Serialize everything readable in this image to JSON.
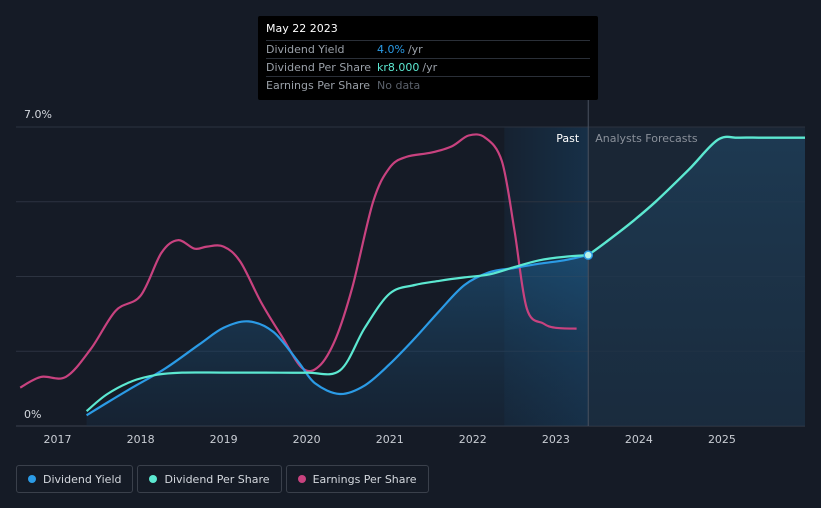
{
  "tooltip": {
    "date": "May 22 2023",
    "rows": [
      {
        "label": "Dividend Yield",
        "value": "4.0%",
        "unit": "/yr"
      },
      {
        "label": "Dividend Per Share",
        "value": "kr8.000",
        "unit": "/yr"
      },
      {
        "label": "Earnings Per Share",
        "value": "No data"
      }
    ]
  },
  "legend": [
    {
      "label": "Dividend Yield",
      "color": "#2b9be6"
    },
    {
      "label": "Dividend Per Share",
      "color": "#5ce8d1"
    },
    {
      "label": "Earnings Per Share",
      "color": "#c8427f"
    }
  ],
  "chart_data": {
    "type": "line",
    "y_tick_labels": [
      "7.0%",
      "0%"
    ],
    "ylim": [
      0,
      7.0
    ],
    "xlim": [
      2016.5,
      2026.0
    ],
    "x_tick_labels": [
      "2017",
      "2018",
      "2019",
      "2020",
      "2021",
      "2022",
      "2023",
      "2024",
      "2025"
    ],
    "x_ticks": [
      2017,
      2018,
      2019,
      2020,
      2021,
      2022,
      2023,
      2024,
      2025
    ],
    "past_label": "Past",
    "forecast_label": "Analysts Forecasts",
    "forecast_start": 2023.39,
    "shade_start": 2022.38,
    "hover_x": 2023.39,
    "series": [
      {
        "name": "Dividend Yield",
        "color": "#2b9be6",
        "x": [
          2017.35,
          2017.6,
          2017.9,
          2018.3,
          2018.7,
          2019.0,
          2019.3,
          2019.6,
          2019.9,
          2020.1,
          2020.4,
          2020.7,
          2021.0,
          2021.3,
          2021.6,
          2021.9,
          2022.2,
          2022.5,
          2022.8,
          2023.1,
          2023.39
        ],
        "y": [
          0.25,
          0.55,
          0.9,
          1.35,
          1.9,
          2.3,
          2.45,
          2.2,
          1.5,
          1.0,
          0.75,
          0.95,
          1.45,
          2.05,
          2.7,
          3.3,
          3.6,
          3.7,
          3.8,
          3.88,
          4.0
        ]
      },
      {
        "name": "Dividend Per Share",
        "color": "#5ce8d1",
        "x": [
          2017.35,
          2017.6,
          2017.9,
          2018.2,
          2018.5,
          2019.0,
          2019.5,
          2020.0,
          2020.4,
          2020.7,
          2021.0,
          2021.3,
          2021.6,
          2021.9,
          2022.2,
          2022.5,
          2022.8,
          2023.1,
          2023.39
        ],
        "y": [
          0.35,
          0.75,
          1.05,
          1.2,
          1.25,
          1.25,
          1.25,
          1.25,
          1.3,
          2.3,
          3.1,
          3.3,
          3.4,
          3.48,
          3.55,
          3.72,
          3.88,
          3.96,
          4.0
        ]
      },
      {
        "name": "Earnings Per Share",
        "color": "#c8427f",
        "x": [
          2016.55,
          2016.8,
          2017.1,
          2017.4,
          2017.7,
          2018.0,
          2018.25,
          2018.45,
          2018.65,
          2018.8,
          2019.0,
          2019.2,
          2019.45,
          2019.7,
          2019.95,
          2020.15,
          2020.35,
          2020.55,
          2020.8,
          2021.0,
          2021.2,
          2021.5,
          2021.75,
          2021.95,
          2022.15,
          2022.35,
          2022.5,
          2022.65,
          2022.85,
          2023.0,
          2023.25
        ],
        "y": [
          0.9,
          1.15,
          1.15,
          1.8,
          2.7,
          3.05,
          4.05,
          4.35,
          4.15,
          4.2,
          4.2,
          3.85,
          2.9,
          2.1,
          1.35,
          1.4,
          2.05,
          3.25,
          5.25,
          6.05,
          6.3,
          6.4,
          6.55,
          6.8,
          6.75,
          6.2,
          4.6,
          2.75,
          2.4,
          2.3,
          2.28
        ]
      },
      {
        "name": "Dividend Per Share (forecast)",
        "color": "#5ce8d1",
        "x": [
          2023.39,
          2023.6,
          2023.9,
          2024.2,
          2024.6,
          2024.95,
          2025.2,
          2025.5,
          2026.0
        ],
        "y": [
          4.0,
          4.3,
          4.75,
          5.25,
          6.0,
          6.7,
          6.75,
          6.75,
          6.75
        ]
      }
    ]
  }
}
